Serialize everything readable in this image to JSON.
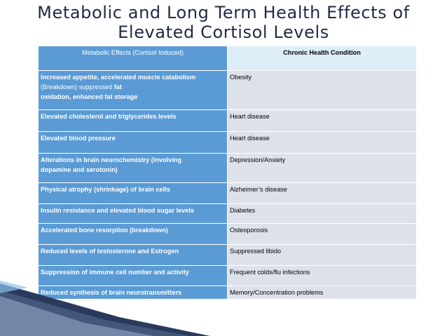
{
  "slide": {
    "title_line1": "Metabolic and Long Term Health Effects of",
    "title_line2": "Elevated Cortisol Levels"
  },
  "table": {
    "headers": {
      "effects": "Metabolic Effects (Cortisol Induced)",
      "condition": "Chronic Health Condition"
    },
    "rows": [
      {
        "effect_line1": "Increased appetite, accelerated muscle catabolism",
        "effect_line2a": "(Breakdown) suppressed",
        "effect_line2b": "fat",
        "effect_line3": "oxidation, enhanced fat storage",
        "condition": "Obesity"
      },
      {
        "effect": "Elevated cholesterol and triglycerides levels",
        "condition": "Heart disease"
      },
      {
        "effect": "Elevated blood pressure",
        "condition": "Heart disease"
      },
      {
        "effect_line1": "Alterations in brain neurochemistry (involving",
        "effect_line2": "dopamine and serotonin)",
        "condition": "Depression/Anxiety"
      },
      {
        "effect": "Physical atrophy (shrinkage) of brain cells",
        "condition": "Alzheimer’s disease"
      },
      {
        "effect": "Insulin resistance and elevated blood sugar levels",
        "condition": "Diabetes"
      },
      {
        "effect": "Accelerated bone resorption (breakdown)",
        "condition": "Osteoporosis"
      },
      {
        "effect": "Reduced levels of testosterone and Estrogen",
        "condition": "Suppressed libido"
      },
      {
        "effect": "Suppression of immune cell number and activity",
        "condition": "Frequent colds/flu infections"
      },
      {
        "effect": "Reduced synthesis of brain neurotransmitters",
        "condition": "Memory/Concentration problems"
      }
    ]
  },
  "colors": {
    "title": "#1f2a44",
    "effects_column": "#5b9bd5",
    "condition_column": "#dde2ea",
    "condition_header": "#ddeef8"
  }
}
